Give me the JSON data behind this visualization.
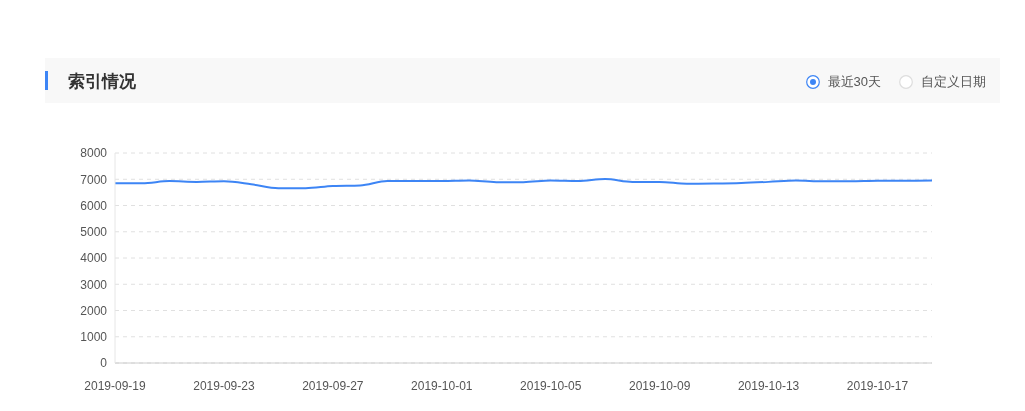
{
  "chart_data": {
    "type": "line",
    "title": "索引情况",
    "annotations": [
      "最近30天",
      "自定义日期"
    ],
    "categories": [
      "2019-09-19",
      null,
      null,
      null,
      "2019-09-23",
      null,
      null,
      null,
      "2019-09-27",
      null,
      null,
      null,
      "2019-10-01",
      null,
      null,
      null,
      "2019-10-05",
      null,
      null,
      null,
      "2019-10-09",
      null,
      null,
      null,
      "2019-10-13",
      null,
      null,
      null,
      "2019-10-17",
      null,
      null
    ],
    "series": [
      {
        "color": "#3d85f5",
        "values": [
          6850,
          6850,
          6930,
          6900,
          6920,
          6810,
          6660,
          6660,
          6740,
          6760,
          6930,
          6930,
          6930,
          6950,
          6890,
          6890,
          6950,
          6930,
          7010,
          6900,
          6900,
          6830,
          6840,
          6860,
          6900,
          6950,
          6920,
          6920,
          6940,
          6940,
          6950
        ]
      }
    ],
    "ylim": [
      0,
      8000
    ],
    "yticks": [
      0,
      1000,
      2000,
      3000,
      4000,
      5000,
      6000,
      7000,
      8000
    ],
    "grid": "y",
    "marker": "none",
    "line_style": "solid",
    "legend": false
  }
}
